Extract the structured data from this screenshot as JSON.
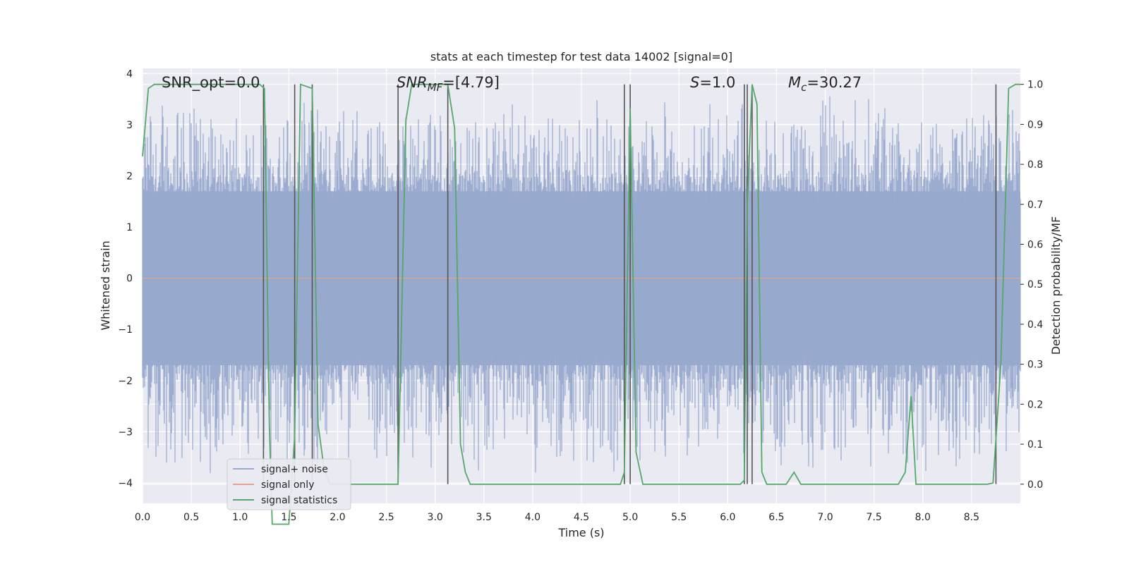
{
  "chart_data": {
    "type": "line",
    "title": "stats at each timestep for test data 14002 [signal=0]",
    "xlabel": "Time (s)",
    "ylabel_left": "Whitened strain",
    "ylabel_right": "Detection probability/MF",
    "xlim": [
      0,
      9.0
    ],
    "ylim_left": [
      -4.4,
      4.1
    ],
    "ylim_right": [
      -0.048,
      1.04
    ],
    "x_ticks": [
      "0.0",
      "0.5",
      "1.0",
      "1.5",
      "2.0",
      "2.5",
      "3.0",
      "3.5",
      "4.0",
      "4.5",
      "5.0",
      "5.5",
      "6.0",
      "6.5",
      "7.0",
      "7.5",
      "8.0",
      "8.5"
    ],
    "y_ticks_left": [
      "−4",
      "−3",
      "−2",
      "−1",
      "0",
      "1",
      "2",
      "3",
      "4"
    ],
    "y_ticks_right": [
      "0.0",
      "0.1",
      "0.2",
      "0.3",
      "0.4",
      "0.5",
      "0.6",
      "0.7",
      "0.8",
      "0.9",
      "1.0"
    ],
    "grid": true,
    "legend_position": "lower-left",
    "annotations": [
      {
        "text": "SNR_opt=0.0",
        "x": 0.7
      },
      {
        "text_parts": [
          "SNR",
          "MF",
          "=[4.79]"
        ],
        "x": 2.6
      },
      {
        "text_parts": [
          "S",
          "",
          "=1.0"
        ],
        "x": 5.6
      },
      {
        "text_parts": [
          "M",
          "c",
          "=30.27"
        ],
        "x": 6.6
      }
    ],
    "series": [
      {
        "name": "signal+ noise",
        "color": "#98a9cd",
        "axis": "left",
        "style": "noise",
        "amplitude_envelope": [
          -3.6,
          3.3
        ],
        "core_range": [
          -1.7,
          1.7
        ]
      },
      {
        "name": "signal only",
        "color": "#e8a387",
        "axis": "left",
        "x": [
          0,
          9.0
        ],
        "y": [
          0,
          0
        ]
      },
      {
        "name": "signal statistics",
        "color": "#55a868",
        "axis": "right",
        "x": [
          0.0,
          0.06,
          0.12,
          0.18,
          0.6,
          1.2,
          1.25,
          1.3,
          1.33,
          1.5,
          1.56,
          1.62,
          1.74,
          1.8,
          1.86,
          1.92,
          2.0,
          2.4,
          2.62,
          2.7,
          2.76,
          2.8,
          3.0,
          3.13,
          3.2,
          3.26,
          3.31,
          3.36,
          4.0,
          4.8,
          4.9,
          4.94,
          5.0,
          5.06,
          5.13,
          5.6,
          6.0,
          6.13,
          6.17,
          6.2,
          6.25,
          6.3,
          6.35,
          6.4,
          6.5,
          6.6,
          6.68,
          6.75,
          7.0,
          7.5,
          7.75,
          7.82,
          7.88,
          7.93,
          8.0,
          8.5,
          8.66,
          8.72,
          8.8,
          8.88,
          8.95,
          9.0
        ],
        "y": [
          0.82,
          0.99,
          1.0,
          1.0,
          1.0,
          1.0,
          0.99,
          0.15,
          -0.1,
          -0.1,
          0.12,
          1.0,
          0.99,
          0.15,
          0.04,
          0.0,
          0.0,
          0.0,
          0.0,
          0.91,
          1.0,
          1.0,
          1.0,
          1.0,
          0.89,
          0.1,
          0.03,
          0.0,
          0.0,
          0.0,
          0.0,
          0.03,
          0.94,
          0.08,
          0.0,
          0.0,
          0.0,
          0.0,
          0.01,
          0.7,
          1.0,
          0.95,
          0.03,
          0.0,
          0.0,
          0.0,
          0.03,
          0.0,
          0.0,
          0.0,
          0.0,
          0.03,
          0.22,
          0.0,
          0.0,
          0.0,
          0.0,
          0.003,
          0.3,
          0.99,
          1.0,
          1.0
        ]
      }
    ],
    "vertical_lines": [
      1.24,
      1.56,
      1.74,
      2.62,
      3.13,
      4.94,
      5.0,
      6.17,
      6.2,
      6.25,
      8.75
    ]
  }
}
